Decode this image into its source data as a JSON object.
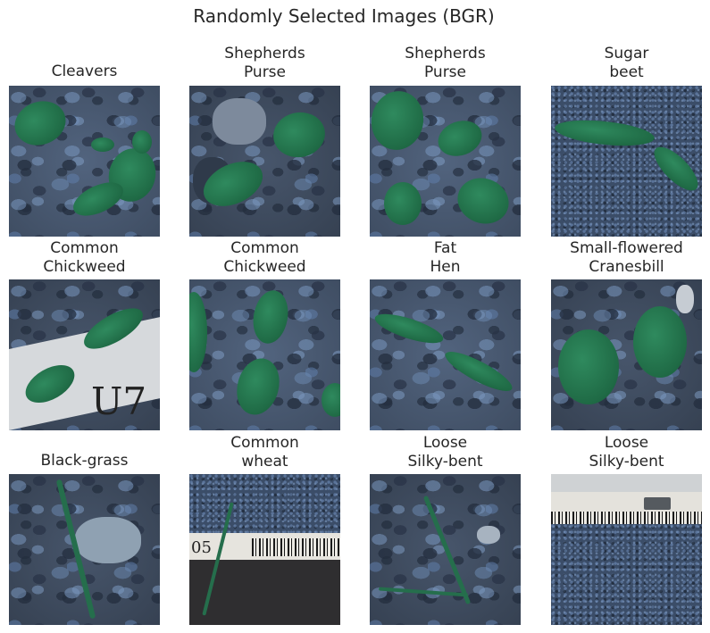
{
  "title": "Randomly Selected Images (BGR)",
  "grid": [
    {
      "title": [
        "Cleavers"
      ]
    },
    {
      "title": [
        "Shepherds",
        "Purse"
      ]
    },
    {
      "title": [
        "Shepherds",
        "Purse"
      ]
    },
    {
      "title": [
        "Sugar",
        "beet"
      ]
    },
    {
      "title": [
        "Common",
        "Chickweed"
      ]
    },
    {
      "title": [
        "Common",
        "Chickweed"
      ]
    },
    {
      "title": [
        "Fat",
        "Hen"
      ]
    },
    {
      "title": [
        "Small-flowered",
        "Cranesbill"
      ]
    },
    {
      "title": [
        "Black-grass"
      ]
    },
    {
      "title": [
        "Common",
        "wheat"
      ]
    },
    {
      "title": [
        "Loose",
        "Silky-bent"
      ]
    },
    {
      "title": [
        "Loose",
        "Silky-bent"
      ]
    }
  ],
  "paper_labels": {
    "chickweed_text": "U7",
    "wheat_text": "05"
  },
  "colors": {
    "leaf_green": "#1f6a45",
    "soil_blue": "#4e5f78"
  }
}
